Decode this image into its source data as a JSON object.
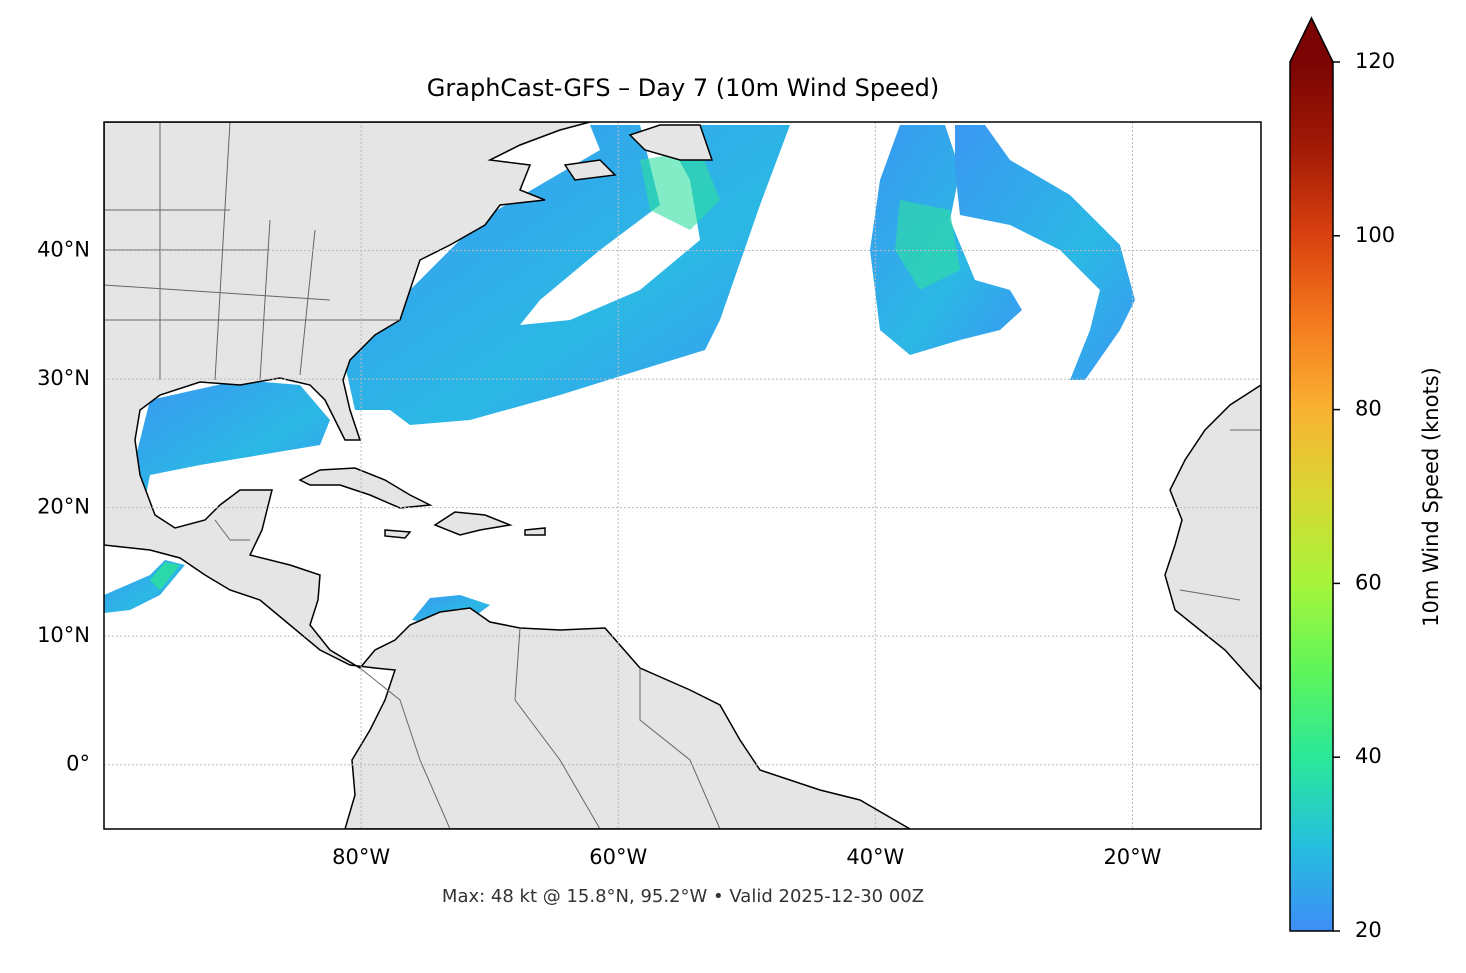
{
  "chart_data": {
    "type": "map",
    "title": "GraphCast-GFS – Day 7 (10m Wind Speed)",
    "note": "Max: 48 kt @ 15.8°N, 95.2°W • Valid 2025-12-30 00Z",
    "xlim": [
      -100,
      -10
    ],
    "ylim": [
      -5,
      50
    ],
    "xticks": [
      {
        "value": -80,
        "label": "80°W"
      },
      {
        "value": -60,
        "label": "60°W"
      },
      {
        "value": -40,
        "label": "40°W"
      },
      {
        "value": -20,
        "label": "20°W"
      }
    ],
    "yticks": [
      {
        "value": 0,
        "label": "0°"
      },
      {
        "value": 10,
        "label": "10°N"
      },
      {
        "value": 20,
        "label": "20°N"
      },
      {
        "value": 30,
        "label": "30°N"
      },
      {
        "value": 40,
        "label": "40°N"
      }
    ],
    "grid": true,
    "colorbar": {
      "label": "10m Wind Speed (knots)",
      "lim": [
        20,
        120
      ],
      "ticks": [
        20,
        40,
        60,
        80,
        100,
        120
      ],
      "colors": [
        "#3e8df7",
        "#25c0dd",
        "#2be898",
        "#5ff55a",
        "#a6f53b",
        "#d8d834",
        "#f9b232",
        "#f57a1e",
        "#d9410f",
        "#a31a06",
        "#7a0403"
      ]
    }
  }
}
